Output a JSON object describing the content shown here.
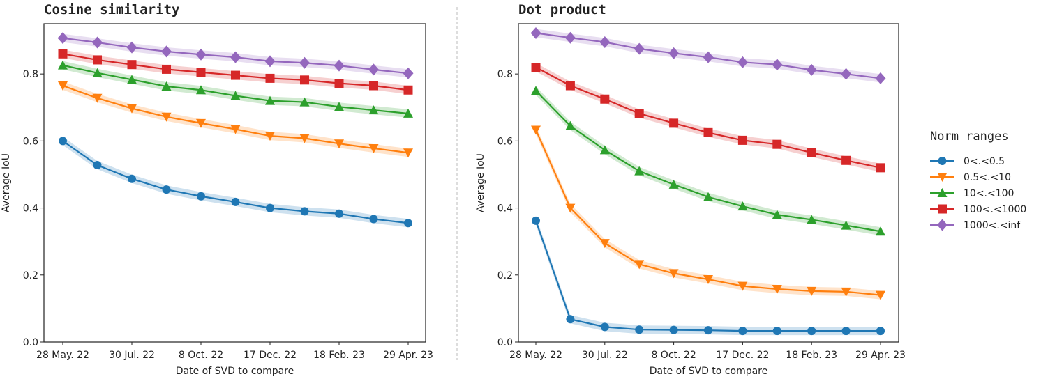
{
  "chart_data": [
    {
      "type": "line",
      "title": "Cosine similarity",
      "xlabel": "Date of SVD to compare",
      "ylabel": "Average IoU",
      "ylim": [
        0,
        0.95
      ],
      "yticks": [
        "0.0",
        "0.2",
        "0.4",
        "0.6",
        "0.8"
      ],
      "xtick_labels": [
        "28 May. 22",
        "30 Jul. 22",
        "8 Oct. 22",
        "17 Dec. 22",
        "18 Feb. 23",
        "29 Apr. 23"
      ],
      "n_points": 11,
      "grid": false,
      "series": [
        {
          "name": "0<.<0.5",
          "values": [
            0.6,
            0.528,
            0.487,
            0.455,
            0.435,
            0.418,
            0.4,
            0.39,
            0.383,
            0.367,
            0.355
          ]
        },
        {
          "name": "0.5<.<10",
          "values": [
            0.765,
            0.728,
            0.697,
            0.672,
            0.653,
            0.635,
            0.615,
            0.608,
            0.592,
            0.578,
            0.565
          ]
        },
        {
          "name": "10<.<100",
          "values": [
            0.826,
            0.803,
            0.783,
            0.763,
            0.752,
            0.735,
            0.72,
            0.716,
            0.702,
            0.692,
            0.682
          ]
        },
        {
          "name": "100<.<1000",
          "values": [
            0.86,
            0.842,
            0.828,
            0.814,
            0.805,
            0.796,
            0.787,
            0.782,
            0.772,
            0.765,
            0.752
          ]
        },
        {
          "name": "1000<.<inf",
          "values": [
            0.907,
            0.894,
            0.879,
            0.867,
            0.858,
            0.85,
            0.838,
            0.833,
            0.825,
            0.813,
            0.802
          ]
        }
      ]
    },
    {
      "type": "line",
      "title": "Dot product",
      "xlabel": "Date of SVD to compare",
      "ylabel": "Average IoU",
      "ylim": [
        0,
        0.95
      ],
      "yticks": [
        "0.0",
        "0.2",
        "0.4",
        "0.6",
        "0.8"
      ],
      "xtick_labels": [
        "28 May. 22",
        "30 Jul. 22",
        "8 Oct. 22",
        "17 Dec. 22",
        "18 Feb. 23",
        "29 Apr. 23"
      ],
      "n_points": 11,
      "grid": false,
      "series": [
        {
          "name": "0<.<0.5",
          "values": [
            0.362,
            0.068,
            0.045,
            0.037,
            0.036,
            0.035,
            0.033,
            0.033,
            0.033,
            0.033,
            0.033
          ]
        },
        {
          "name": "0.5<.<10",
          "values": [
            0.633,
            0.4,
            0.295,
            0.232,
            0.205,
            0.187,
            0.167,
            0.158,
            0.152,
            0.15,
            0.14
          ]
        },
        {
          "name": "10<.<100",
          "values": [
            0.75,
            0.645,
            0.573,
            0.51,
            0.47,
            0.433,
            0.405,
            0.38,
            0.365,
            0.348,
            0.33
          ]
        },
        {
          "name": "100<.<1000",
          "values": [
            0.82,
            0.765,
            0.725,
            0.682,
            0.653,
            0.625,
            0.602,
            0.59,
            0.565,
            0.542,
            0.52
          ]
        },
        {
          "name": "1000<.<inf",
          "values": [
            0.922,
            0.908,
            0.895,
            0.875,
            0.862,
            0.85,
            0.835,
            0.828,
            0.812,
            0.8,
            0.787
          ]
        }
      ]
    }
  ],
  "legend": {
    "title": "Norm ranges",
    "placement": "right",
    "entries": [
      "0<.<0.5",
      "0.5<.<10",
      "10<.<100",
      "100<.<1000",
      "1000<.<inf"
    ]
  },
  "styles": {
    "colors": [
      "#1f77b4",
      "#ff7f0e",
      "#2ca02c",
      "#d62728",
      "#9467bd"
    ],
    "markers": [
      "circle",
      "triangle-down",
      "triangle-up",
      "square",
      "diamond"
    ]
  }
}
